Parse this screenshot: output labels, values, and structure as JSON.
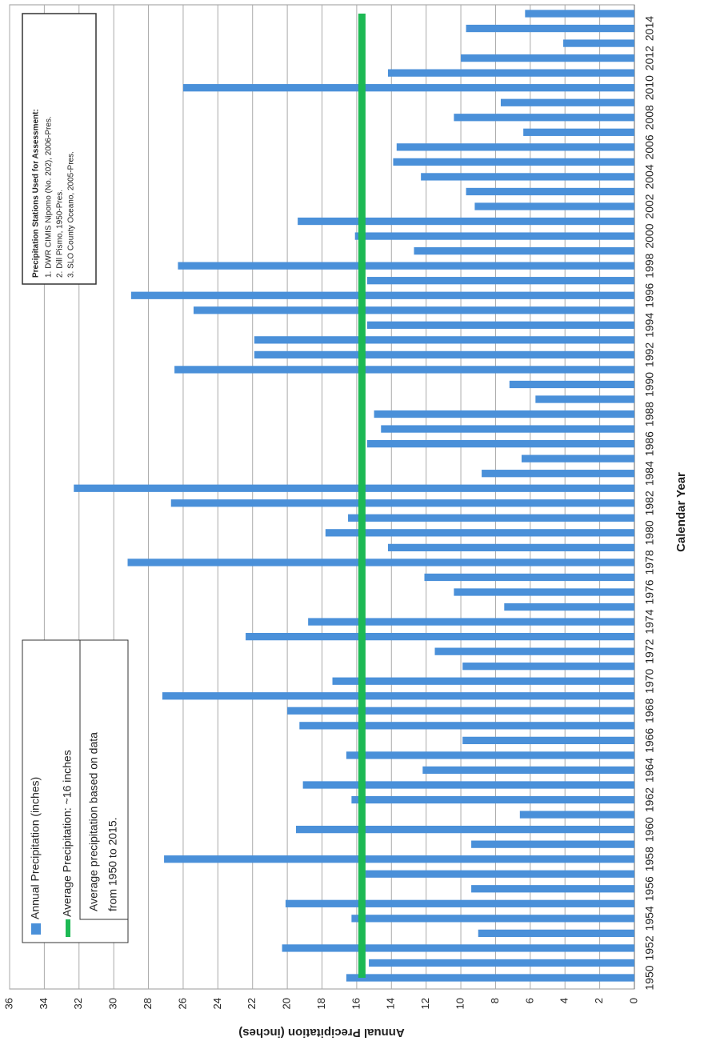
{
  "chart_data": {
    "type": "bar",
    "x_label": "Calendar Year",
    "y_label": "Annual Precipitation (inches)",
    "categories": [
      "1950",
      null,
      "1952",
      null,
      "1954",
      null,
      "1956",
      null,
      "1958",
      null,
      "1960",
      null,
      "1962",
      null,
      "1964",
      null,
      "1966",
      null,
      "1968",
      null,
      "1970",
      null,
      "1972",
      null,
      "1974",
      null,
      "1976",
      null,
      "1978",
      null,
      "1980",
      null,
      "1982",
      null,
      "1984",
      null,
      "1986",
      null,
      "1988",
      null,
      "1990",
      null,
      "1992",
      null,
      "1994",
      null,
      "1996",
      null,
      "1998",
      null,
      "2000",
      null,
      "2002",
      null,
      "2004",
      null,
      "2006",
      null,
      "2008",
      null,
      "2010",
      null,
      "2012",
      null,
      "2014",
      null
    ],
    "series": [
      {
        "name": "Annual Precipitation (inches)",
        "color": "#4a90d9",
        "values": [
          16.6,
          15.3,
          20.3,
          9.0,
          16.3,
          20.1,
          9.4,
          15.5,
          27.1,
          9.4,
          19.5,
          6.6,
          16.3,
          19.1,
          12.2,
          16.6,
          9.9,
          19.3,
          20.0,
          27.2,
          17.4,
          9.9,
          11.5,
          22.4,
          18.8,
          7.5,
          10.4,
          12.1,
          29.2,
          14.2,
          17.8,
          16.5,
          26.7,
          32.3,
          8.8,
          6.5,
          15.4,
          14.6,
          15.0,
          5.7,
          7.2,
          26.5,
          21.9,
          21.9,
          15.4,
          25.4,
          29.0,
          15.4,
          26.3,
          12.7,
          16.1,
          19.4,
          9.2,
          9.7,
          12.3,
          13.9,
          13.7,
          6.4,
          10.4,
          7.7,
          26.0,
          14.2,
          10.0,
          4.1,
          9.7,
          6.3
        ]
      },
      {
        "name": "Average Precipitation: ~16 inches",
        "color": "#1db954",
        "kind": "line",
        "values": [
          15.7,
          15.7,
          15.7,
          15.7,
          15.7,
          15.7,
          15.7,
          15.7,
          15.7,
          15.7,
          15.7,
          15.7,
          15.7,
          15.7,
          15.7,
          15.7,
          15.7,
          15.7,
          15.7,
          15.7,
          15.7,
          15.7,
          15.7,
          15.7,
          15.7,
          15.7,
          15.7,
          15.7,
          15.7,
          15.7,
          15.7,
          15.7,
          15.7,
          15.7,
          15.7,
          15.7,
          15.7,
          15.7,
          15.7,
          15.7,
          15.7,
          15.7,
          15.7,
          15.7,
          15.7,
          15.7,
          15.7,
          15.7,
          15.7,
          15.7,
          15.7,
          15.7,
          15.7,
          15.7,
          15.7,
          15.7,
          15.7,
          15.7,
          15.7,
          15.7,
          15.7,
          15.7,
          15.7,
          15.7,
          15.7,
          15.7
        ]
      }
    ],
    "legend_note": [
      "Average precipitation based on data",
      "from 1950 to 2015."
    ],
    "stations": {
      "title": "Precipitation Stations Used for Assessment:",
      "lines": [
        "1. DWR CIMIS Nipomo (No. 202), 2006-Pres.",
        "2. Dill Pismo, 1950-Pres.",
        "3. SLO County Oceano, 2005-Pres."
      ]
    },
    "ylim": [
      0,
      36
    ],
    "yticks": [
      0,
      2,
      4,
      6,
      8,
      10,
      12,
      14,
      16,
      18,
      20,
      22,
      24,
      26,
      28,
      30,
      32,
      34,
      36
    ],
    "grid": true
  }
}
